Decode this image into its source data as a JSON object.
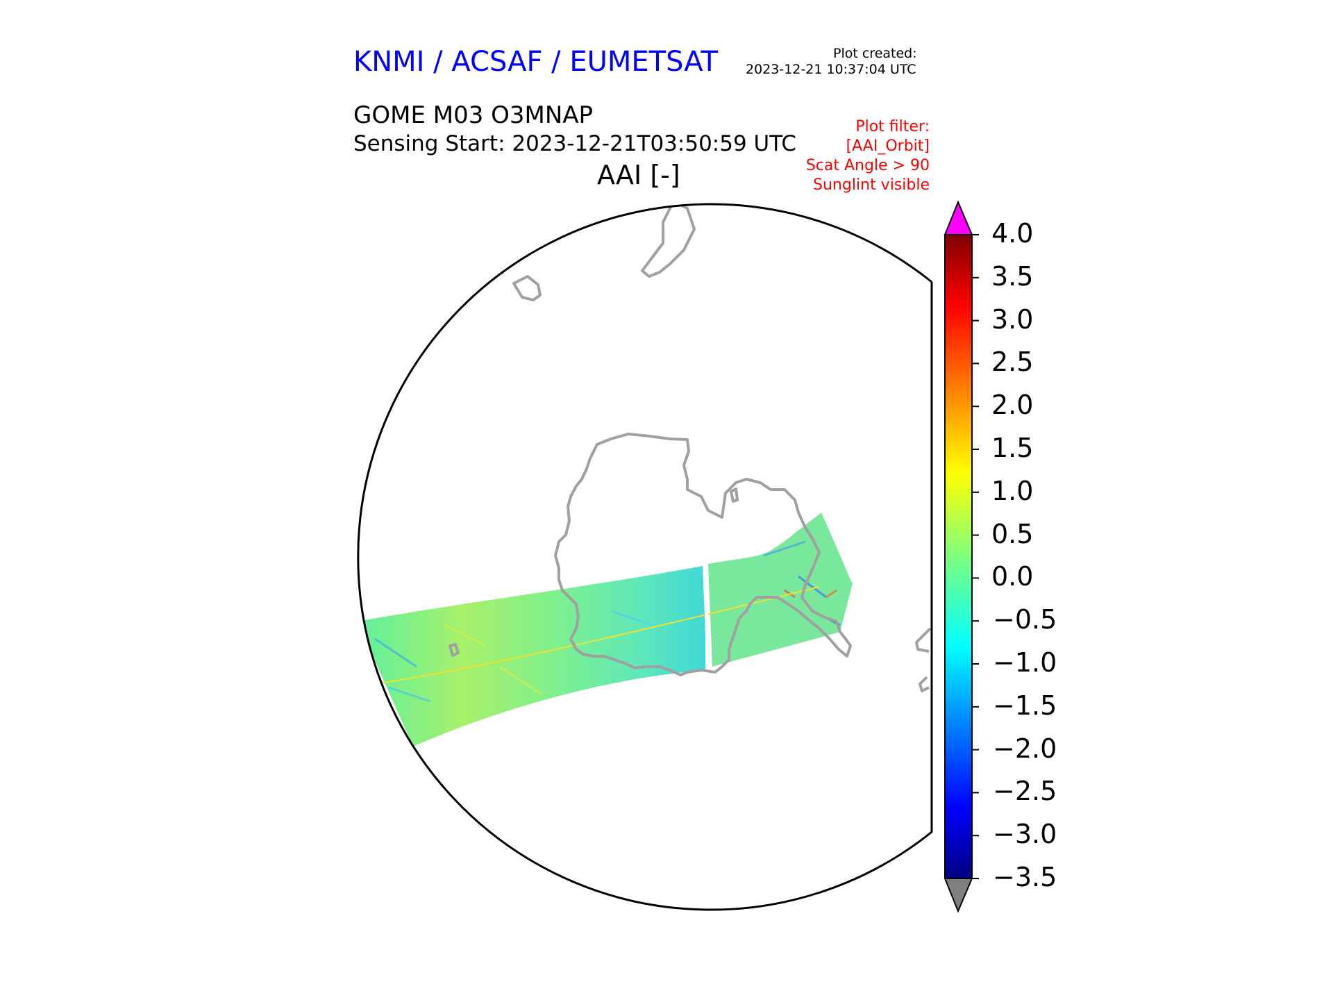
{
  "header": {
    "brand": "KNMI / ACSAF / EUMETSAT",
    "plot_created_label": "Plot created:",
    "plot_created_value": "2023-12-21 10:37:04 UTC",
    "product": "GOME M03 O3MNAP",
    "sensing_start": "Sensing Start: 2023-12-21T03:50:59 UTC",
    "variable_title": "AAI [-]",
    "plot_filter": [
      "Plot filter:",
      "[AAI_Orbit]",
      "Scat Angle > 90",
      "Sunglint visible"
    ]
  },
  "colorbar": {
    "ticks": [
      "4.0",
      "3.5",
      "3.0",
      "2.5",
      "2.0",
      "1.5",
      "1.0",
      "0.5",
      "0.0",
      "−0.5",
      "−1.0",
      "−1.5",
      "−2.0",
      "−2.5",
      "−3.0",
      "−3.5"
    ],
    "range": [
      -3.5,
      4.0
    ],
    "over_color": "#ff00ff",
    "under_color": "#808080",
    "colormap": "jet"
  },
  "colors": {
    "coastline": "#a0a0a0",
    "map_border": "#000000"
  }
}
